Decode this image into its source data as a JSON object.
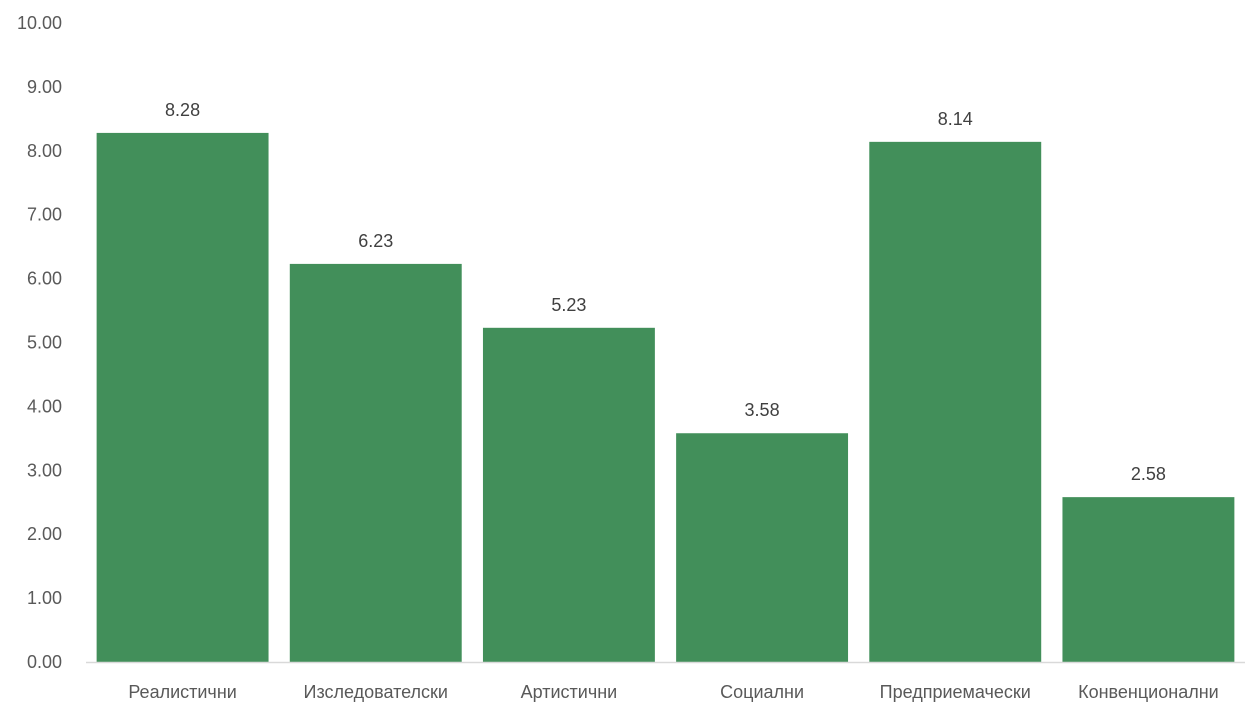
{
  "chart_data": {
    "type": "bar",
    "categories": [
      "Реалистични",
      "Изследователски",
      "Артистични",
      "Социални",
      "Предприемачески",
      "Конвенционални"
    ],
    "values": [
      8.28,
      6.23,
      5.23,
      3.58,
      8.14,
      2.58
    ],
    "value_labels": [
      "8.28",
      "6.23",
      "5.23",
      "3.58",
      "8.14",
      "2.58"
    ],
    "ylim": [
      0,
      10
    ],
    "yticks": [
      "0.00",
      "1.00",
      "2.00",
      "3.00",
      "4.00",
      "5.00",
      "6.00",
      "7.00",
      "8.00",
      "9.00",
      "10.00"
    ],
    "grid": false,
    "legend": "none",
    "bar_color": "#428f5a",
    "axis_color": "#d9d9d9"
  }
}
